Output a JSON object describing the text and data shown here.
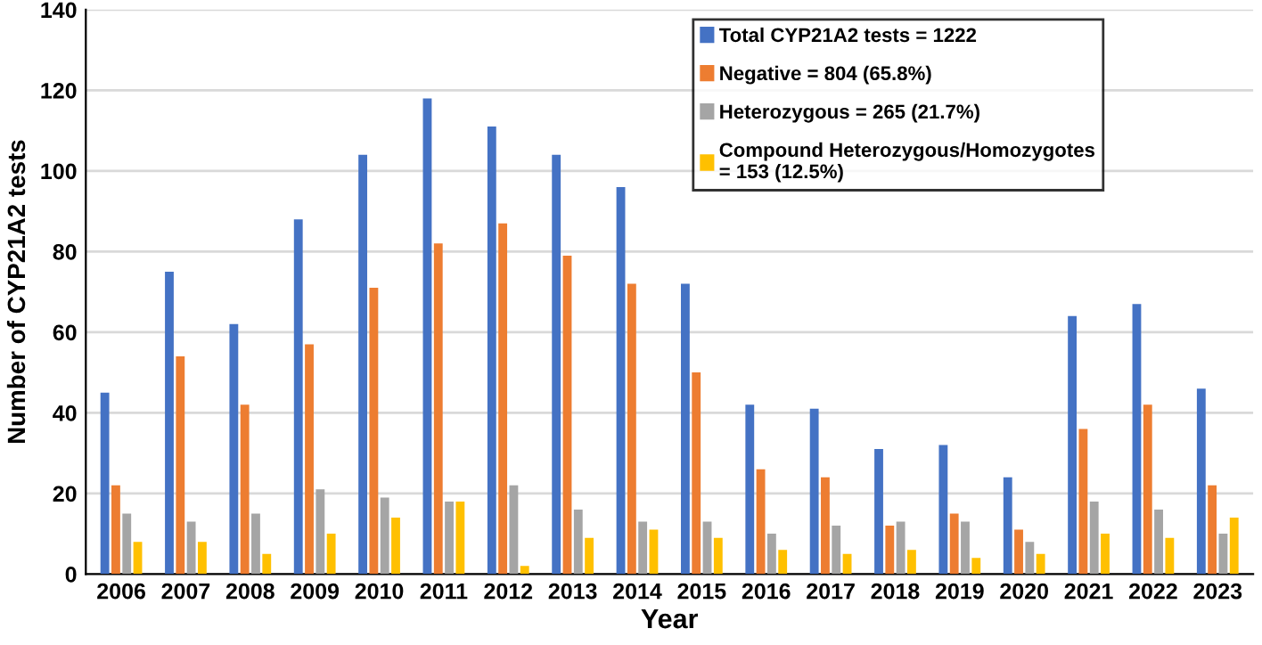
{
  "chart_data": {
    "type": "bar",
    "xlabel": "Year",
    "ylabel": "Number of CYP21A2 tests",
    "categories": [
      "2006",
      "2007",
      "2008",
      "2009",
      "2010",
      "2011",
      "2012",
      "2013",
      "2014",
      "2015",
      "2016",
      "2017",
      "2018",
      "2019",
      "2020",
      "2021",
      "2022",
      "2023"
    ],
    "series": [
      {
        "name": "Total CYP21A2 tests = 1222",
        "color": "#4472c4",
        "values": [
          45,
          75,
          62,
          88,
          104,
          118,
          111,
          104,
          96,
          72,
          42,
          41,
          31,
          32,
          24,
          64,
          67,
          46
        ]
      },
      {
        "name": "Negative = 804 (65.8%)",
        "color": "#ed7d31",
        "values": [
          22,
          54,
          42,
          57,
          71,
          82,
          87,
          79,
          72,
          50,
          26,
          24,
          12,
          15,
          11,
          36,
          42,
          22
        ]
      },
      {
        "name": "Heterozygous = 265 (21.7%)",
        "color": "#a5a5a5",
        "values": [
          15,
          13,
          15,
          21,
          19,
          18,
          22,
          16,
          13,
          13,
          10,
          12,
          13,
          13,
          8,
          18,
          16,
          10
        ]
      },
      {
        "name": "Compound Heterozygous/Homozygotes\n= 153 (12.5%)",
        "color": "#ffc000",
        "values": [
          8,
          8,
          5,
          10,
          14,
          18,
          2,
          9,
          11,
          9,
          6,
          5,
          6,
          4,
          5,
          10,
          9,
          14
        ]
      }
    ],
    "ylim": [
      0,
      140
    ],
    "yticks": [
      0,
      20,
      40,
      60,
      80,
      100,
      120,
      140
    ],
    "grid": "y",
    "legend": "top right"
  }
}
